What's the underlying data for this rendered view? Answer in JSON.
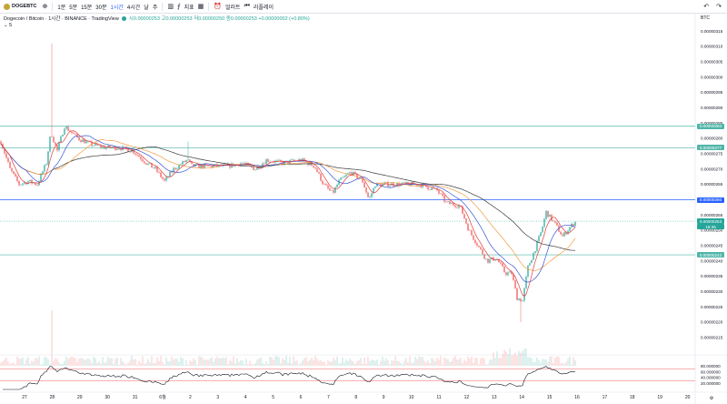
{
  "toolbar": {
    "symbol": "DOGEBTC",
    "intervals": [
      "1분",
      "5분",
      "15분",
      "30분",
      "1시간",
      "4시간",
      "날",
      "주"
    ],
    "active_interval": "1시간",
    "indicators_label": "지표",
    "alert_label": "얼러트",
    "replay_label": "리플레이"
  },
  "legend": {
    "title": "Dogecoin / Bitcoin · 1시간 · BINANCE · TradingView",
    "ohlc": "시0.00000253  고0.00000253  저0.00000250  종0.00000253  +0.00000002 (+0.80%)",
    "ma": "5"
  },
  "currency": "BTC",
  "colors": {
    "up": "#26a69a",
    "down": "#ef5350",
    "hline": "#4fb5a8",
    "blue_line": "#2962ff",
    "ma_black": "#3a3a3a",
    "ma_orange": "#f59b42",
    "ma_blue": "#3955d6",
    "ma_red": "#e03c3c",
    "rsi": "#131722",
    "rsi_band": "#f08080"
  },
  "price_axis": [
    "0.00000315",
    "0.00000310",
    "0.00000305",
    "0.00000300",
    "0.00000295",
    "0.00000290",
    "0.00000285",
    "0.00000280",
    "0.00000275",
    "0.00000270",
    "0.00000265",
    "0.00000260",
    "0.00000255",
    "0.00000250",
    "0.00000245",
    "0.00000240",
    "0.00000235",
    "0.00000230",
    "0.00000225",
    "0.00000220",
    "0.00000215"
  ],
  "rsi_axis": [
    "80.000000",
    "60.000000",
    "40.000000",
    "20.000000"
  ],
  "price_tags": [
    {
      "value": "0.00000284",
      "kind": "level"
    },
    {
      "value": "0.00000277",
      "kind": "level"
    },
    {
      "value": "0.00000260",
      "kind": "blue"
    },
    {
      "value": "0.00000253",
      "kind": "current",
      "countdown": "18:36"
    },
    {
      "value": "0.00000242",
      "kind": "level"
    }
  ],
  "date_axis": [
    "27",
    "28",
    "29",
    "30",
    "31",
    "6월",
    "2",
    "3",
    "4",
    "5",
    "6",
    "7",
    "8",
    "9",
    "10",
    "11",
    "12",
    "13",
    "14",
    "15",
    "16",
    "17",
    "18",
    "19",
    "20"
  ],
  "chart_data": {
    "type": "candlestick",
    "pair": "DOGE/BTC",
    "interval": "1h",
    "ylim": [
      2.135e-06,
      3.175e-06
    ],
    "horizontal_levels": [
      2.84e-06,
      2.77e-06,
      2.6e-06,
      2.42e-06
    ],
    "current_price": 2.53e-06,
    "anchors": [
      [
        0,
        2.79e-06
      ],
      [
        10,
        2.7e-06
      ],
      [
        20,
        2.65e-06
      ],
      [
        30,
        2.66e-06
      ],
      [
        40,
        2.65e-06
      ],
      [
        50,
        2.72e-06
      ],
      [
        55,
        2.82e-06
      ],
      [
        62,
        2.76e-06
      ],
      [
        70,
        2.84e-06
      ],
      [
        85,
        2.8e-06
      ],
      [
        100,
        2.78e-06
      ],
      [
        115,
        2.77e-06
      ],
      [
        130,
        2.77e-06
      ],
      [
        145,
        2.76e-06
      ],
      [
        160,
        2.72e-06
      ],
      [
        170,
        2.7e-06
      ],
      [
        180,
        2.66e-06
      ],
      [
        190,
        2.7e-06
      ],
      [
        205,
        2.73e-06
      ],
      [
        210,
        2.71e-06
      ],
      [
        230,
        2.71e-06
      ],
      [
        250,
        2.71e-06
      ],
      [
        265,
        2.72e-06
      ],
      [
        280,
        2.7e-06
      ],
      [
        292,
        2.73e-06
      ],
      [
        310,
        2.72e-06
      ],
      [
        330,
        2.73e-06
      ],
      [
        345,
        2.71e-06
      ],
      [
        355,
        2.65e-06
      ],
      [
        365,
        2.62e-06
      ],
      [
        372,
        2.66e-06
      ],
      [
        385,
        2.69e-06
      ],
      [
        398,
        2.66e-06
      ],
      [
        405,
        2.6e-06
      ],
      [
        412,
        2.65e-06
      ],
      [
        430,
        2.65e-06
      ],
      [
        460,
        2.65e-06
      ],
      [
        480,
        2.63e-06
      ],
      [
        490,
        2.59e-06
      ],
      [
        505,
        2.58e-06
      ],
      [
        515,
        2.5e-06
      ],
      [
        525,
        2.45e-06
      ],
      [
        535,
        2.4e-06
      ],
      [
        545,
        2.41e-06
      ],
      [
        555,
        2.36e-06
      ],
      [
        562,
        2.36e-06
      ],
      [
        568,
        2.28e-06
      ],
      [
        574,
        2.27e-06
      ],
      [
        580,
        2.38e-06
      ],
      [
        588,
        2.44e-06
      ],
      [
        595,
        2.5e-06
      ],
      [
        600,
        2.56e-06
      ],
      [
        610,
        2.52e-06
      ],
      [
        618,
        2.48e-06
      ],
      [
        626,
        2.51e-06
      ],
      [
        633,
        2.53e-06
      ]
    ],
    "rsi": {
      "period": 14,
      "upper": 70,
      "lower": 30
    }
  }
}
